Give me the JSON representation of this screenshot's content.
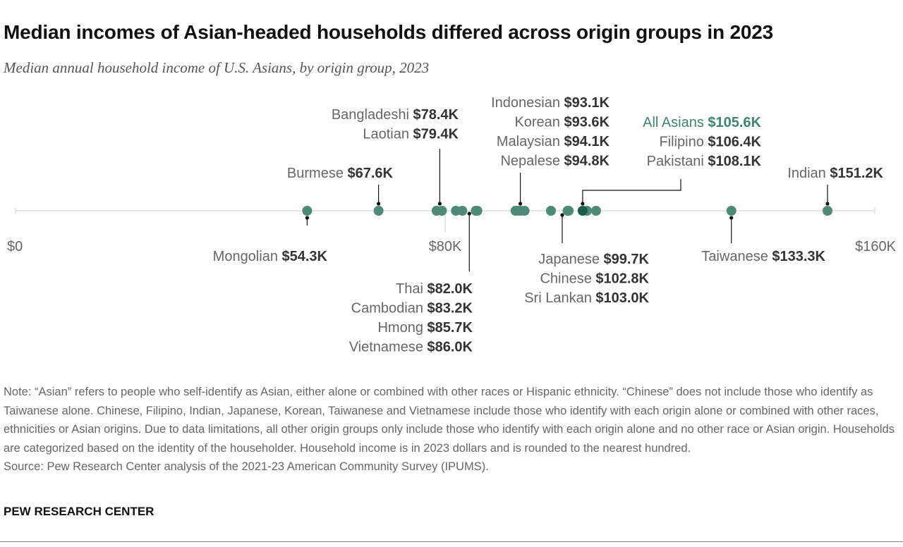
{
  "title": "Median incomes of Asian-headed households differed across origin groups in 2023",
  "subtitle": "Median annual household income of U.S. Asians, by origin group, 2023",
  "note": "Note: “Asian” refers to people who self-identify as Asian, either alone or combined with other races or Hispanic ethnicity. “Chinese” does not include those who identify as Taiwanese alone. Chinese, Filipino, Indian, Japanese, Korean, Taiwanese and Vietnamese include those who identify with each origin alone or combined with other races, ethnicities or Asian origins. Due to data limitations, all other origin groups only include those who identify with each origin alone and no other race or Asian origin. Households are categorized based on the identity of the householder. Household income is in 2023 dollars and is rounded to the nearest hundred.",
  "source": "Source: Pew Research Center analysis of the 2021-23 American Community Survey (IPUMS).",
  "brand": "PEW RESEARCH CENTER",
  "colors": {
    "dot": "#4f8a78",
    "all_asians_dot": "#1c5c4a",
    "all_asians_text": "#3f8371",
    "label": "#666666",
    "value": "#333333",
    "axis": "#cccccc"
  },
  "chart_data": {
    "type": "scatter",
    "unit": "thousands of 2023 dollars",
    "xlim": [
      0,
      160
    ],
    "ticks": [
      {
        "value": 0,
        "label": "$0"
      },
      {
        "value": 80,
        "label": "$80K"
      },
      {
        "value": 160,
        "label": "$160K"
      }
    ],
    "points": [
      {
        "name": "Mongolian",
        "value": 54.3,
        "value_label": "$54.3K"
      },
      {
        "name": "Burmese",
        "value": 67.6,
        "value_label": "$67.6K"
      },
      {
        "name": "Bangladeshi",
        "value": 78.4,
        "value_label": "$78.4K"
      },
      {
        "name": "Laotian",
        "value": 79.4,
        "value_label": "$79.4K"
      },
      {
        "name": "Thai",
        "value": 82.0,
        "value_label": "$82.0K"
      },
      {
        "name": "Cambodian",
        "value": 83.2,
        "value_label": "$83.2K"
      },
      {
        "name": "Hmong",
        "value": 85.7,
        "value_label": "$85.7K"
      },
      {
        "name": "Vietnamese",
        "value": 86.0,
        "value_label": "$86.0K"
      },
      {
        "name": "Indonesian",
        "value": 93.1,
        "value_label": "$93.1K"
      },
      {
        "name": "Korean",
        "value": 93.6,
        "value_label": "$93.6K"
      },
      {
        "name": "Malaysian",
        "value": 94.1,
        "value_label": "$94.1K"
      },
      {
        "name": "Nepalese",
        "value": 94.8,
        "value_label": "$94.8K"
      },
      {
        "name": "Japanese",
        "value": 99.7,
        "value_label": "$99.7K"
      },
      {
        "name": "Chinese",
        "value": 102.8,
        "value_label": "$102.8K"
      },
      {
        "name": "Sri Lankan",
        "value": 103.0,
        "value_label": "$103.0K"
      },
      {
        "name": "All Asians",
        "value": 105.6,
        "value_label": "$105.6K",
        "highlight": true
      },
      {
        "name": "Filipino",
        "value": 106.4,
        "value_label": "$106.4K"
      },
      {
        "name": "Pakistani",
        "value": 108.1,
        "value_label": "$108.1K"
      },
      {
        "name": "Taiwanese",
        "value": 133.3,
        "value_label": "$133.3K"
      },
      {
        "name": "Indian",
        "value": 151.2,
        "value_label": "$151.2K"
      }
    ],
    "label_groups": [
      {
        "members": [
          "Mongolian"
        ],
        "side": "below",
        "value": 54.3
      },
      {
        "members": [
          "Burmese"
        ],
        "side": "above",
        "value": 67.6
      },
      {
        "members": [
          "Bangladeshi",
          "Laotian"
        ],
        "side": "above",
        "value": 79.0
      },
      {
        "members": [
          "Thai",
          "Cambodian",
          "Hmong",
          "Vietnamese"
        ],
        "side": "below",
        "value": 84.5
      },
      {
        "members": [
          "Indonesian",
          "Korean",
          "Malaysian",
          "Nepalese"
        ],
        "side": "above",
        "value": 94.0
      },
      {
        "members": [
          "Japanese",
          "Chinese",
          "Sri Lankan"
        ],
        "side": "below",
        "value": 101.8
      },
      {
        "members": [
          "All Asians",
          "Filipino",
          "Pakistani"
        ],
        "side": "above",
        "value": 105.6
      },
      {
        "members": [
          "Taiwanese"
        ],
        "side": "below",
        "value": 133.3
      },
      {
        "members": [
          "Indian"
        ],
        "side": "above",
        "value": 151.2
      }
    ]
  }
}
